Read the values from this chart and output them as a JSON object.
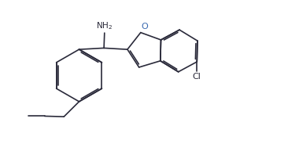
{
  "background_color": "#ffffff",
  "line_color": "#2a2a3a",
  "O_color": "#3a6ab0",
  "Cl_color": "#2a2a3a",
  "NH2_color": "#2a2a3a",
  "figsize": [
    3.8,
    1.93
  ],
  "dpi": 100
}
